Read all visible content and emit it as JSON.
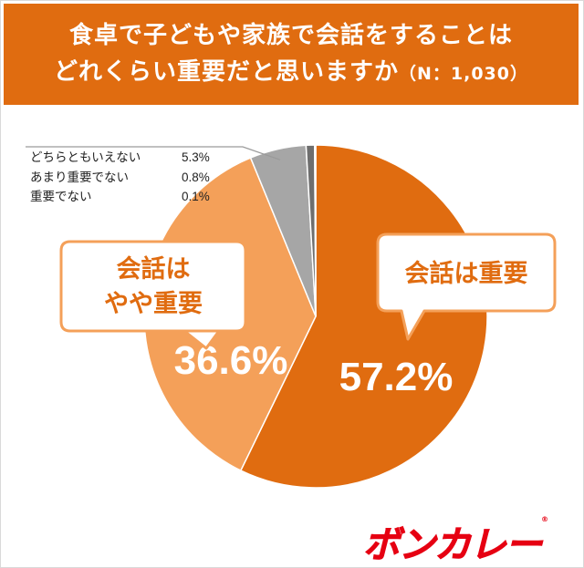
{
  "title_line1": "食卓で子どもや家族で会話をすることは",
  "title_line2": "どれくらい重要だと思いますか",
  "sample_note": "（N：1,030）",
  "colors": {
    "header": "#e06c10",
    "important": "#e06c10",
    "somewhat_important": "#f4a059",
    "neutral": "#a6a6a6",
    "not_very": "#6e6e6e",
    "not_important": "#262626",
    "logo": "#e60012"
  },
  "chart_data": {
    "type": "pie",
    "slices": [
      {
        "label": "会話は重要",
        "value": 57.2,
        "display": "57.2%",
        "color": "#e06c10"
      },
      {
        "label": "会話はやや重要",
        "value": 36.6,
        "display": "36.6%",
        "color": "#f4a059"
      },
      {
        "label": "どちらともいえない",
        "value": 5.3,
        "display": "5.3%",
        "color": "#a6a6a6"
      },
      {
        "label": "あまり重要でない",
        "value": 0.8,
        "display": "0.8%",
        "color": "#6e6e6e"
      },
      {
        "label": "重要でない",
        "value": 0.1,
        "display": "0.1%",
        "color": "#262626"
      }
    ],
    "callouts": {
      "important": "会話は重要",
      "somewhat_line1": "会話は",
      "somewhat_line2": "やや重要"
    },
    "small_labels": [
      {
        "label": "どちらともいえない",
        "value": "5.3%"
      },
      {
        "label": "あまり重要でない",
        "value": "0.8%"
      },
      {
        "label": "重要でない",
        "value": "0.1%"
      }
    ]
  },
  "logo_text": "ボンカレー",
  "logo_mark": "®"
}
